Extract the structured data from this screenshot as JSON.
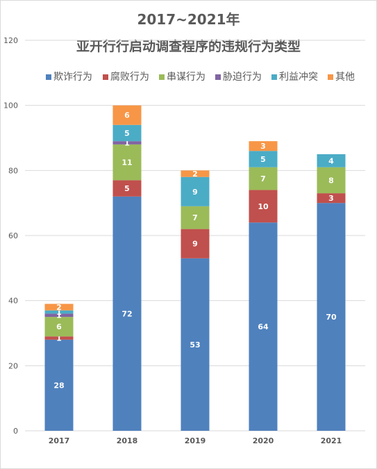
{
  "chart_data": {
    "type": "bar",
    "stacked": true,
    "title": "2017~2021年",
    "subtitle": "亚开行行启动调查程序的违规行为类型",
    "categories": [
      "2017",
      "2018",
      "2019",
      "2020",
      "2021"
    ],
    "series": [
      {
        "name": "欺诈行为",
        "color": "#4f81bd",
        "values": [
          28,
          72,
          53,
          64,
          70
        ]
      },
      {
        "name": "腐败行为",
        "color": "#c0504d",
        "values": [
          1,
          5,
          9,
          10,
          3
        ]
      },
      {
        "name": "串谋行为",
        "color": "#9bbb59",
        "values": [
          6,
          11,
          7,
          7,
          8
        ]
      },
      {
        "name": "胁迫行为",
        "color": "#8064a2",
        "values": [
          1,
          1,
          0,
          0,
          0
        ]
      },
      {
        "name": "利益冲突",
        "color": "#4bacc6",
        "values": [
          1,
          5,
          9,
          5,
          4
        ]
      },
      {
        "name": "其他",
        "color": "#f79646",
        "values": [
          2,
          6,
          2,
          3,
          0
        ]
      }
    ],
    "yticks": [
      "0",
      "20",
      "40",
      "60",
      "80",
      "100",
      "120"
    ],
    "ylim": [
      0,
      120
    ],
    "grid": true,
    "legend_position": "top"
  }
}
